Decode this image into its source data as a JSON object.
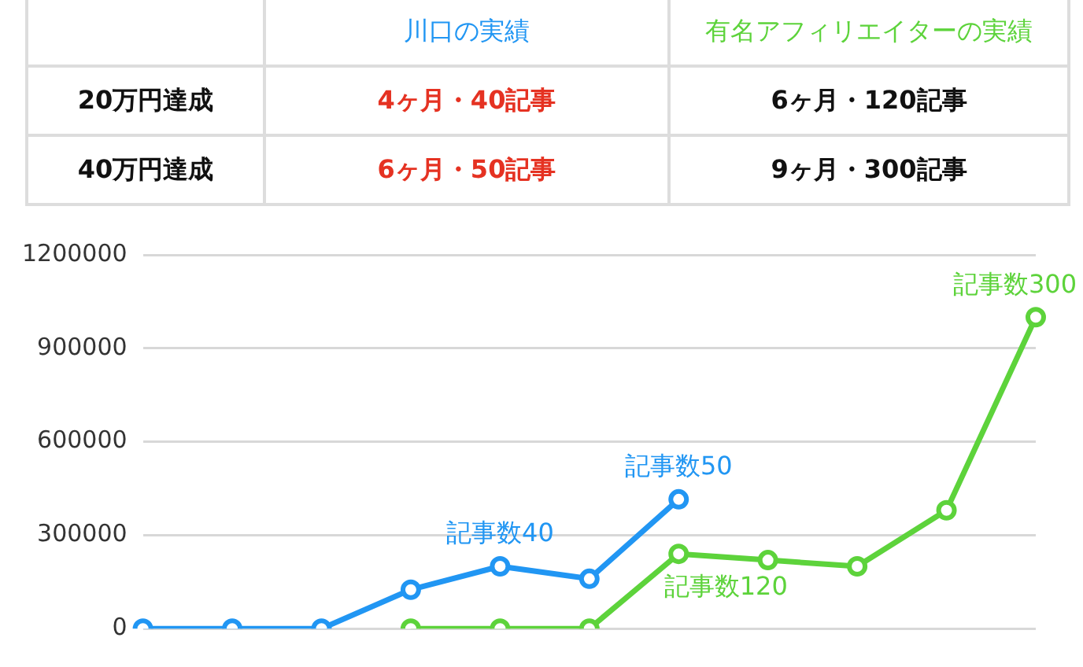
{
  "chart_data": [
    {
      "type": "other",
      "annotations": [
        "川口の実績",
        "有名アフィリエイターの実績",
        "20万円達成",
        "4ヶ月・40記事",
        "6ヶ月・120記事",
        "40万円達成",
        "6ヶ月・50記事",
        "9ヶ月・300記事"
      ]
    },
    {
      "type": "line",
      "categories": [
        null,
        null,
        null,
        null,
        null,
        null,
        null,
        null,
        null,
        null,
        null
      ],
      "series": [
        {
          "color": "#2196f3",
          "values": [
            0,
            0,
            0,
            125000,
            200000,
            160000,
            415000,
            null,
            null,
            null,
            null
          ],
          "value_labels": [
            null,
            null,
            null,
            null,
            "記事数40",
            null,
            "記事数50",
            null,
            null,
            null,
            null
          ]
        },
        {
          "color": "#5dd33b",
          "values": [
            null,
            null,
            null,
            0,
            0,
            0,
            240000,
            220000,
            200000,
            380000,
            1000000
          ],
          "value_labels": [
            null,
            null,
            null,
            null,
            null,
            null,
            "記事数120",
            null,
            null,
            null,
            "記事数300"
          ]
        }
      ],
      "ylim": [
        0,
        1200000
      ],
      "yticks": [
        0,
        300000,
        600000,
        900000,
        1200000
      ],
      "grid": "y",
      "legend": false,
      "marker": "circle",
      "line_style": "solid"
    }
  ]
}
